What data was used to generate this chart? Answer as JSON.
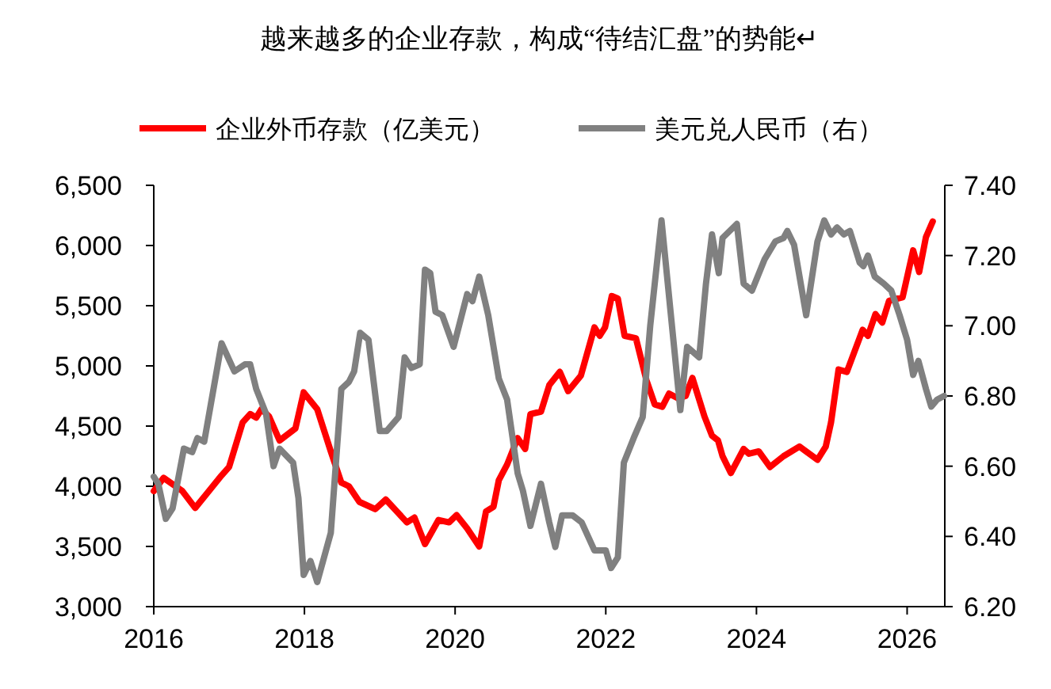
{
  "chart_data": {
    "type": "line",
    "title": "越来越多的企业存款，构成“待结汇盘”的势能↵",
    "legend": "top",
    "grid": false,
    "xlim": [
      2016,
      2026.5
    ],
    "xticks": [
      2016,
      2018,
      2020,
      2022,
      2024,
      2026
    ],
    "ylim": [
      3000,
      6500
    ],
    "yticks": [
      {
        "value": 3000,
        "label": "3,000"
      },
      {
        "value": 3500,
        "label": "3,500"
      },
      {
        "value": 4000,
        "label": "4,000"
      },
      {
        "value": 4500,
        "label": "4,500"
      },
      {
        "value": 5000,
        "label": "5,000"
      },
      {
        "value": 5500,
        "label": "5,500"
      },
      {
        "value": 6000,
        "label": "6,000"
      },
      {
        "value": 6500,
        "label": "6,500"
      }
    ],
    "y2lim": [
      6.2,
      7.4
    ],
    "y2ticks": [
      {
        "value": 6.2,
        "label": "6.20"
      },
      {
        "value": 6.4,
        "label": "6.40"
      },
      {
        "value": 6.6,
        "label": "6.60"
      },
      {
        "value": 6.8,
        "label": "6.80"
      },
      {
        "value": 7.0,
        "label": "7.00"
      },
      {
        "value": 7.2,
        "label": "7.20"
      },
      {
        "value": 7.4,
        "label": "7.40"
      }
    ],
    "series": [
      {
        "name": "企业外币存款（亿美元）",
        "color": "#ff0000",
        "x": [
          2016.0,
          2016.13,
          2016.38,
          2016.55,
          2016.9,
          2017.0,
          2017.18,
          2017.28,
          2017.36,
          2017.43,
          2017.53,
          2017.67,
          2017.88,
          2017.99,
          2018.17,
          2018.35,
          2018.49,
          2018.59,
          2018.73,
          2018.94,
          2019.08,
          2019.36,
          2019.46,
          2019.6,
          2019.78,
          2019.92,
          2020.02,
          2020.16,
          2020.32,
          2020.41,
          2020.51,
          2020.58,
          2020.69,
          2020.83,
          2020.93,
          2021.0,
          2021.14,
          2021.25,
          2021.39,
          2021.5,
          2021.67,
          2021.85,
          2021.92,
          2021.99,
          2022.08,
          2022.16,
          2022.25,
          2022.4,
          2022.54,
          2022.65,
          2022.75,
          2022.84,
          2022.96,
          2023.06,
          2023.15,
          2023.31,
          2023.41,
          2023.49,
          2023.55,
          2023.66,
          2023.83,
          2023.9,
          2024.03,
          2024.18,
          2024.36,
          2024.57,
          2024.81,
          2024.92,
          2024.99,
          2025.09,
          2025.2,
          2025.41,
          2025.48,
          2025.58,
          2025.67,
          2025.76,
          2025.94,
          2026.08,
          2026.16,
          2026.25,
          2026.34
        ],
        "values": [
          3960,
          4070,
          3960,
          3820,
          4090,
          4160,
          4530,
          4600,
          4570,
          4640,
          4580,
          4380,
          4480,
          4780,
          4640,
          4290,
          4030,
          4000,
          3870,
          3810,
          3890,
          3700,
          3740,
          3520,
          3720,
          3700,
          3760,
          3650,
          3500,
          3790,
          3830,
          4050,
          4180,
          4400,
          4310,
          4600,
          4620,
          4840,
          4950,
          4790,
          4920,
          5320,
          5250,
          5320,
          5580,
          5560,
          5250,
          5230,
          4880,
          4680,
          4660,
          4770,
          4730,
          4750,
          4900,
          4580,
          4420,
          4380,
          4250,
          4110,
          4310,
          4270,
          4290,
          4160,
          4250,
          4330,
          4220,
          4330,
          4530,
          4970,
          4950,
          5300,
          5250,
          5430,
          5360,
          5540,
          5570,
          5960,
          5780,
          6070,
          6200
        ]
      },
      {
        "name": "美元兑人民币（右）",
        "color": "#808080",
        "axis": "y2",
        "x": [
          2016.0,
          2016.06,
          2016.16,
          2016.25,
          2016.4,
          2016.51,
          2016.58,
          2016.67,
          2016.9,
          2017.07,
          2017.21,
          2017.28,
          2017.36,
          2017.49,
          2017.59,
          2017.67,
          2017.85,
          2017.92,
          2017.99,
          2018.08,
          2018.17,
          2018.35,
          2018.49,
          2018.59,
          2018.66,
          2018.74,
          2018.85,
          2019.0,
          2019.09,
          2019.25,
          2019.33,
          2019.42,
          2019.53,
          2019.6,
          2019.67,
          2019.74,
          2019.83,
          2019.98,
          2020.16,
          2020.23,
          2020.32,
          2020.44,
          2020.58,
          2020.69,
          2020.83,
          2020.9,
          2021.0,
          2021.14,
          2021.25,
          2021.33,
          2021.42,
          2021.56,
          2021.68,
          2021.85,
          2022.0,
          2022.07,
          2022.16,
          2022.24,
          2022.37,
          2022.49,
          2022.59,
          2022.74,
          2022.86,
          2022.99,
          2023.08,
          2023.24,
          2023.33,
          2023.41,
          2023.5,
          2023.55,
          2023.74,
          2023.83,
          2023.94,
          2024.11,
          2024.25,
          2024.36,
          2024.41,
          2024.5,
          2024.66,
          2024.81,
          2024.9,
          2024.99,
          2025.07,
          2025.16,
          2025.24,
          2025.37,
          2025.42,
          2025.48,
          2025.57,
          2025.69,
          2025.79,
          2025.9,
          2026.0,
          2026.08,
          2026.15,
          2026.25,
          2026.32,
          2026.4,
          2026.49
        ],
        "values": [
          6.57,
          6.55,
          6.45,
          6.48,
          6.65,
          6.64,
          6.68,
          6.67,
          6.95,
          6.87,
          6.89,
          6.89,
          6.82,
          6.75,
          6.6,
          6.65,
          6.61,
          6.51,
          6.29,
          6.33,
          6.27,
          6.41,
          6.82,
          6.84,
          6.87,
          6.98,
          6.96,
          6.7,
          6.7,
          6.74,
          6.91,
          6.88,
          6.89,
          7.16,
          7.15,
          7.04,
          7.03,
          6.94,
          7.09,
          7.07,
          7.14,
          7.03,
          6.85,
          6.79,
          6.58,
          6.53,
          6.43,
          6.55,
          6.44,
          6.37,
          6.46,
          6.46,
          6.44,
          6.36,
          6.36,
          6.31,
          6.34,
          6.61,
          6.68,
          6.74,
          7.0,
          7.3,
          7.04,
          6.76,
          6.94,
          6.91,
          7.12,
          7.26,
          7.15,
          7.25,
          7.29,
          7.12,
          7.1,
          7.19,
          7.24,
          7.25,
          7.27,
          7.23,
          7.03,
          7.24,
          7.3,
          7.26,
          7.28,
          7.26,
          7.27,
          7.18,
          7.17,
          7.2,
          7.14,
          7.12,
          7.1,
          7.03,
          6.96,
          6.86,
          6.9,
          6.82,
          6.77,
          6.79,
          6.8
        ]
      }
    ]
  }
}
